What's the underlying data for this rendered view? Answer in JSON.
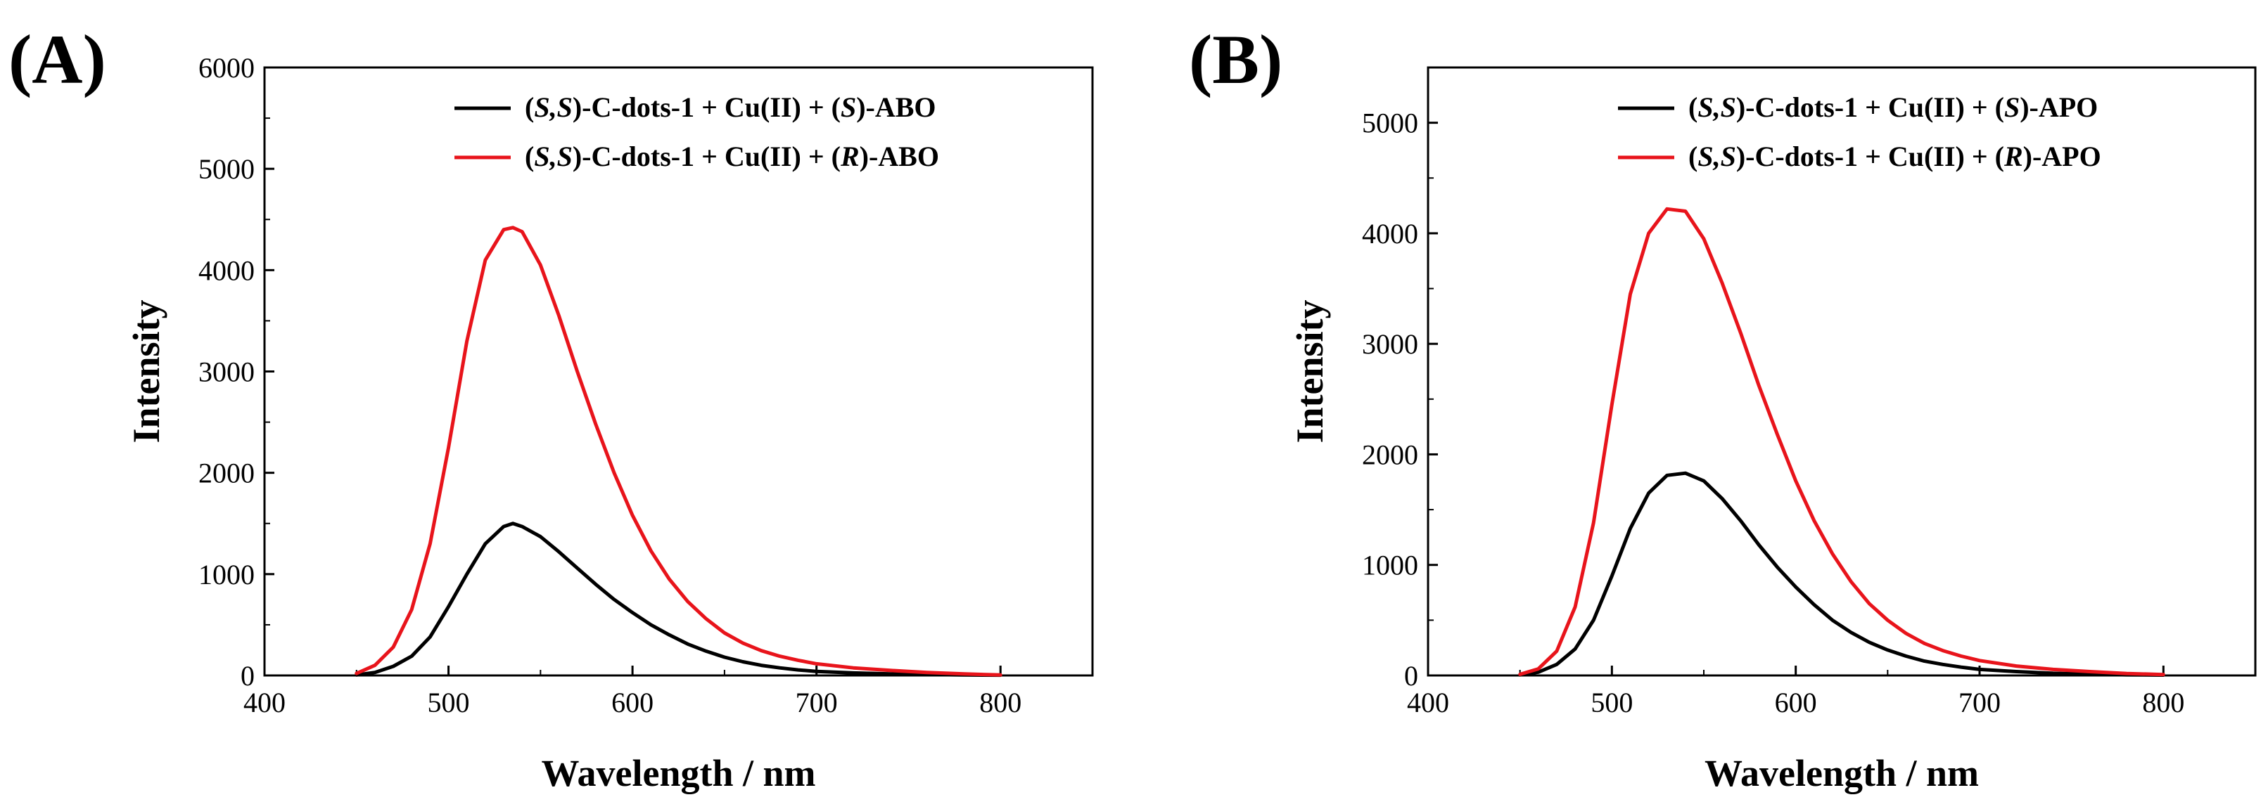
{
  "chart_data": [
    {
      "type": "line",
      "panel_label": "(A)",
      "xlabel": "Wavelength / nm",
      "ylabel": "Intensity",
      "xlim": [
        400,
        850
      ],
      "ylim": [
        0,
        6000
      ],
      "x_ticks": [
        400,
        500,
        600,
        700,
        800
      ],
      "y_ticks": [
        0,
        1000,
        2000,
        3000,
        4000,
        5000,
        6000
      ],
      "legend_position": "top-right",
      "grid": false,
      "series": [
        {
          "name": "(S,S)-C-dots-1 + Cu(II) + (S)-ABO",
          "legend": {
            "a": "(",
            "b": "S,S",
            "c": ")-C-dots-1 + Cu(II) + (",
            "d": "S",
            "e": ")-ABO"
          },
          "color": "#000000",
          "x": [
            450,
            460,
            470,
            480,
            490,
            500,
            510,
            520,
            530,
            535,
            540,
            550,
            560,
            570,
            580,
            590,
            600,
            610,
            620,
            630,
            640,
            650,
            660,
            670,
            680,
            690,
            700,
            720,
            740,
            760,
            780,
            800
          ],
          "y": [
            5,
            30,
            90,
            190,
            380,
            680,
            1000,
            1300,
            1470,
            1500,
            1470,
            1370,
            1220,
            1060,
            900,
            750,
            620,
            500,
            400,
            310,
            240,
            180,
            135,
            100,
            75,
            55,
            40,
            25,
            15,
            10,
            5,
            3
          ]
        },
        {
          "name": "(S,S)-C-dots-1 + Cu(II) + (R)-ABO",
          "legend": {
            "a": "(",
            "b": "S,S",
            "c": ")-C-dots-1 + Cu(II) + (",
            "d": "R",
            "e": ")-ABO"
          },
          "color": "#e8141b",
          "x": [
            450,
            460,
            470,
            480,
            490,
            500,
            510,
            520,
            530,
            535,
            540,
            550,
            560,
            570,
            580,
            590,
            600,
            610,
            620,
            630,
            640,
            650,
            660,
            670,
            680,
            690,
            700,
            720,
            740,
            760,
            780,
            800
          ],
          "y": [
            20,
            100,
            280,
            650,
            1300,
            2250,
            3300,
            4100,
            4400,
            4420,
            4380,
            4050,
            3550,
            3000,
            2480,
            2000,
            1580,
            1230,
            950,
            730,
            560,
            420,
            320,
            245,
            190,
            150,
            115,
            75,
            50,
            30,
            15,
            5
          ]
        }
      ]
    },
    {
      "type": "line",
      "panel_label": "(B)",
      "xlabel": "Wavelength / nm",
      "ylabel": "Intensity",
      "xlim": [
        400,
        850
      ],
      "ylim": [
        0,
        5500
      ],
      "x_ticks": [
        400,
        500,
        600,
        700,
        800
      ],
      "y_ticks": [
        0,
        1000,
        2000,
        3000,
        4000,
        5000
      ],
      "legend_position": "top-right",
      "grid": false,
      "series": [
        {
          "name": "(S,S)-C-dots-1 + Cu(II) + (S)-APO",
          "legend": {
            "a": "(",
            "b": "S,S",
            "c": ")-C-dots-1 + Cu(II) + (",
            "d": "S",
            "e": ")-APO"
          },
          "color": "#000000",
          "x": [
            450,
            460,
            470,
            480,
            490,
            500,
            510,
            520,
            530,
            540,
            550,
            560,
            570,
            580,
            590,
            600,
            610,
            620,
            630,
            640,
            650,
            660,
            670,
            680,
            690,
            700,
            720,
            740,
            760,
            780,
            800
          ],
          "y": [
            5,
            30,
            100,
            240,
            500,
            900,
            1330,
            1650,
            1810,
            1830,
            1760,
            1600,
            1400,
            1180,
            980,
            800,
            640,
            500,
            390,
            300,
            230,
            175,
            130,
            100,
            75,
            55,
            35,
            20,
            12,
            6,
            3
          ]
        },
        {
          "name": "(S,S)-C-dots-1 + Cu(II) + (R)-APO",
          "legend": {
            "a": "(",
            "b": "S,S",
            "c": ")-C-dots-1 + Cu(II) + (",
            "d": "R",
            "e": ")-APO"
          },
          "color": "#e8141b",
          "x": [
            450,
            460,
            470,
            480,
            490,
            500,
            510,
            520,
            530,
            540,
            550,
            560,
            570,
            580,
            590,
            600,
            610,
            620,
            630,
            640,
            650,
            660,
            670,
            680,
            690,
            700,
            720,
            740,
            760,
            780,
            800
          ],
          "y": [
            10,
            60,
            220,
            620,
            1380,
            2450,
            3450,
            4000,
            4220,
            4200,
            3950,
            3550,
            3100,
            2620,
            2180,
            1760,
            1400,
            1100,
            850,
            650,
            500,
            380,
            290,
            225,
            175,
            135,
            85,
            55,
            35,
            18,
            8
          ]
        }
      ]
    }
  ]
}
